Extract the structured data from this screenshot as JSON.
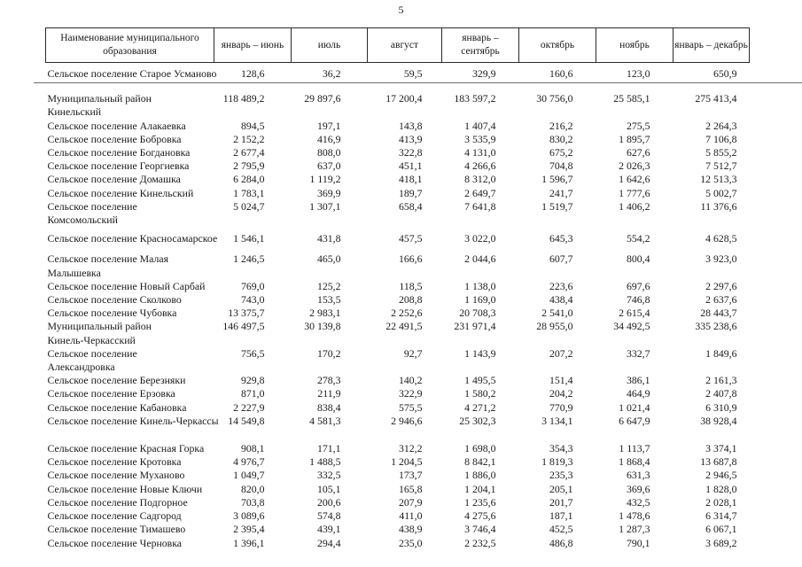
{
  "page": {
    "number": "5"
  },
  "colors": {
    "background": "#ffffff",
    "text": "#1a1a1a",
    "header_border": "#2a2a2a",
    "section_rule": "#6e6e6e"
  },
  "table": {
    "header": {
      "name_column": "Наименование муниципального образования",
      "period_columns": [
        "январь – июнь",
        "июль",
        "август",
        "январь – сентябрь",
        "октябрь",
        "ноябрь",
        "январь – декабрь"
      ]
    },
    "rows": [
      {
        "type": "settlement",
        "name_lines": [
          "Сельское поселение Старое Усманово"
        ],
        "values": [
          "128,6",
          "36,2",
          "59,5",
          "329,9",
          "160,6",
          "123,0",
          "650,9"
        ],
        "rule_below": true
      },
      {
        "type": "district",
        "gap_before": 13,
        "name_lines": [
          "Муниципальный район",
          "Кинельский"
        ],
        "values": [
          "118 489,2",
          "29 897,6",
          "17 200,4",
          "183 597,2",
          "30 756,0",
          "25 585,1",
          "275 413,4"
        ]
      },
      {
        "type": "settlement",
        "name_lines": [
          "Сельское поселение Алакаевка"
        ],
        "values": [
          "894,5",
          "197,1",
          "143,8",
          "1 407,4",
          "216,2",
          "275,5",
          "2 264,3"
        ]
      },
      {
        "type": "settlement",
        "name_lines": [
          "Сельское поселение Бобровка"
        ],
        "values": [
          "2 152,2",
          "416,9",
          "413,9",
          "3 535,9",
          "830,2",
          "1 895,7",
          "7 106,8"
        ]
      },
      {
        "type": "settlement",
        "name_lines": [
          "Сельское поселение Богдановка"
        ],
        "values": [
          "2 677,4",
          "808,0",
          "322,8",
          "4 131,0",
          "675,2",
          "627,6",
          "5 855,2"
        ]
      },
      {
        "type": "settlement",
        "name_lines": [
          "Сельское поселение Георгиевка"
        ],
        "values": [
          "2 795,9",
          "637,0",
          "451,1",
          "4 266,6",
          "704,8",
          "2 026,3",
          "7 512,7"
        ]
      },
      {
        "type": "settlement",
        "name_lines": [
          "Сельское поселение Домашка"
        ],
        "values": [
          "6 284,0",
          "1 119,2",
          "418,1",
          "8 312,0",
          "1 596,7",
          "1 642,6",
          "12 513,3"
        ]
      },
      {
        "type": "settlement",
        "name_lines": [
          "Сельское поселение Кинельский"
        ],
        "values": [
          "1 783,1",
          "369,9",
          "189,7",
          "2 649,7",
          "241,7",
          "1 777,6",
          "5 002,7"
        ]
      },
      {
        "type": "settlement",
        "name_lines": [
          "Сельское поселение",
          "Комсомольский"
        ],
        "values": [
          "5 024,7",
          "1 307,1",
          "658,4",
          "7 641,8",
          "1 519,7",
          "1 406,2",
          "11 376,6"
        ]
      },
      {
        "type": "settlement",
        "gap_before": 6,
        "name_lines": [
          "Сельское поселение Красносамарское"
        ],
        "values": [
          "1 546,1",
          "431,8",
          "457,5",
          "3 022,0",
          "645,3",
          "554,2",
          "4 628,5"
        ]
      },
      {
        "type": "settlement",
        "gap_before": 8,
        "name_lines": [
          "Сельское поселение Малая",
          "Малышевка"
        ],
        "values": [
          "1 246,5",
          "465,0",
          "166,6",
          "2 044,6",
          "607,7",
          "800,4",
          "3 923,0"
        ]
      },
      {
        "type": "settlement",
        "name_lines": [
          "Сельское поселение Новый Сарбай"
        ],
        "values": [
          "769,0",
          "125,2",
          "118,5",
          "1 138,0",
          "223,6",
          "697,6",
          "2 297,6"
        ]
      },
      {
        "type": "settlement",
        "name_lines": [
          "Сельское поселение Сколково"
        ],
        "values": [
          "743,0",
          "153,5",
          "208,8",
          "1 169,0",
          "438,4",
          "746,8",
          "2 637,6"
        ]
      },
      {
        "type": "settlement",
        "name_lines": [
          "Сельское поселение Чубовка"
        ],
        "values": [
          "13 375,7",
          "2 983,1",
          "2 252,6",
          "20 708,3",
          "2 541,0",
          "2 615,4",
          "28 443,7"
        ]
      },
      {
        "type": "district",
        "name_lines": [
          "Муниципальный район",
          "Кинель-Черкасский"
        ],
        "values": [
          "146 497,5",
          "30 139,8",
          "22 491,5",
          "231 971,4",
          "28 955,0",
          "34 492,5",
          "335 238,6"
        ]
      },
      {
        "type": "settlement",
        "name_lines": [
          "Сельское поселение",
          "Александровка"
        ],
        "values": [
          "756,5",
          "170,2",
          "92,7",
          "1 143,9",
          "207,2",
          "332,7",
          "1 849,6"
        ]
      },
      {
        "type": "settlement",
        "name_lines": [
          "Сельское поселение Березняки"
        ],
        "values": [
          "929,8",
          "278,3",
          "140,2",
          "1 495,5",
          "151,4",
          "386,1",
          "2 161,3"
        ]
      },
      {
        "type": "settlement",
        "name_lines": [
          "Сельское поселение Ерзовка"
        ],
        "values": [
          "871,0",
          "211,9",
          "322,9",
          "1 580,2",
          "204,2",
          "464,9",
          "2 407,8"
        ]
      },
      {
        "type": "settlement",
        "name_lines": [
          "Сельское поселение Кабановка"
        ],
        "values": [
          "2 227,9",
          "838,4",
          "575,5",
          "4 271,2",
          "770,9",
          "1 021,4",
          "6 310,9"
        ]
      },
      {
        "type": "settlement",
        "name_lines": [
          "Сельское поселение Кинель-Черкассы"
        ],
        "values": [
          "14 549,8",
          "4 581,3",
          "2 946,6",
          "25 302,3",
          "3 134,1",
          "6 647,9",
          "38 928,4"
        ]
      },
      {
        "type": "settlement",
        "gap_before": 16,
        "name_lines": [
          "Сельское поселение Красная Горка"
        ],
        "values": [
          "908,1",
          "171,1",
          "312,2",
          "1 698,0",
          "354,3",
          "1 113,7",
          "3 374,1"
        ]
      },
      {
        "type": "settlement",
        "name_lines": [
          "Сельское поселение Кротовка"
        ],
        "values": [
          "4 976,7",
          "1 488,5",
          "1 204,5",
          "8 842,1",
          "1 819,3",
          "1 868,4",
          "13 687,8"
        ]
      },
      {
        "type": "settlement",
        "name_lines": [
          "Сельское поселение Муханово"
        ],
        "values": [
          "1 049,7",
          "332,5",
          "173,7",
          "1 886,0",
          "235,3",
          "631,3",
          "2 946,5"
        ]
      },
      {
        "type": "settlement",
        "name_lines": [
          "Сельское поселение Новые Ключи"
        ],
        "values": [
          "820,0",
          "105,1",
          "165,8",
          "1 204,1",
          "205,1",
          "369,6",
          "1 828,0"
        ]
      },
      {
        "type": "settlement",
        "name_lines": [
          "Сельское поселение Подгорное"
        ],
        "values": [
          "703,8",
          "200,6",
          "207,9",
          "1 235,6",
          "201,7",
          "432,5",
          "2 028,1"
        ]
      },
      {
        "type": "settlement",
        "name_lines": [
          "Сельское поселение Садгород"
        ],
        "values": [
          "3 089,6",
          "574,8",
          "411,0",
          "4 275,6",
          "187,1",
          "1 478,6",
          "6 314,7"
        ]
      },
      {
        "type": "settlement",
        "name_lines": [
          "Сельское поселение Тимашево"
        ],
        "values": [
          "2 395,4",
          "439,1",
          "438,9",
          "3 746,4",
          "452,5",
          "1 287,3",
          "6 067,1"
        ]
      },
      {
        "type": "settlement",
        "name_lines": [
          "Сельское поселение Черновка"
        ],
        "values": [
          "1 396,1",
          "294,4",
          "235,0",
          "2 232,5",
          "486,8",
          "790,1",
          "3 689,2"
        ]
      }
    ]
  }
}
